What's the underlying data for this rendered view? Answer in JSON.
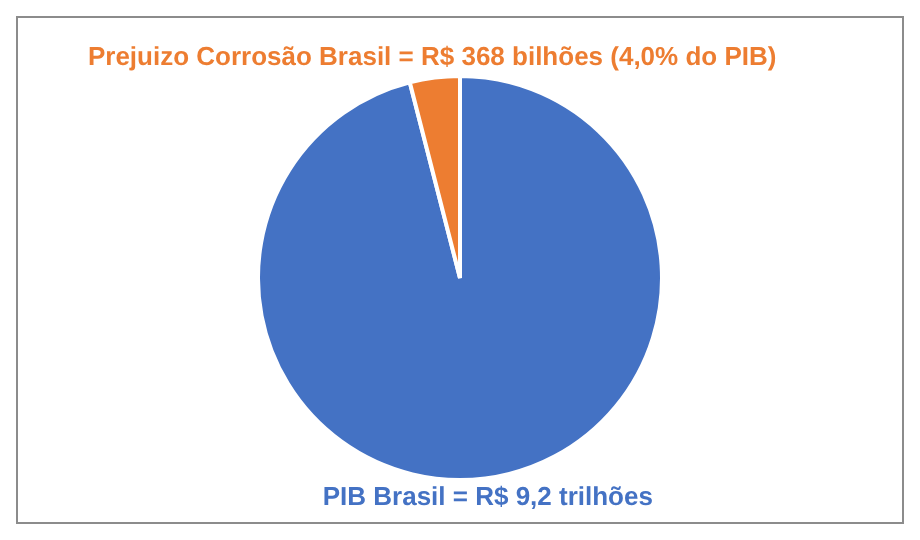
{
  "chart_data": {
    "type": "pie",
    "categories": [
      "PIB Brasil = R$ 9,2 trilhões",
      "Prejuizo Corrosão Brasil = R$ 368 bilhões (4,0% do PIB)"
    ],
    "values": [
      96,
      4
    ],
    "colors": [
      "#4472c4",
      "#ed7d31"
    ],
    "legend": false
  }
}
